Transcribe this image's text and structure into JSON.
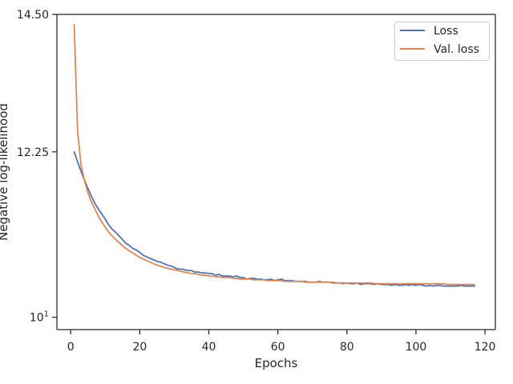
{
  "chart_data": {
    "type": "line",
    "title": "",
    "xlabel": "Epochs",
    "ylabel": "Negative log-likelihood",
    "yscale": "log",
    "xlim": [
      -4,
      123
    ],
    "ylim": [
      9.85,
      14.5
    ],
    "xticks": [
      {
        "value": 0,
        "label": "0"
      },
      {
        "value": 20,
        "label": "20"
      },
      {
        "value": 40,
        "label": "40"
      },
      {
        "value": 60,
        "label": "60"
      },
      {
        "value": 80,
        "label": "80"
      },
      {
        "value": 100,
        "label": "100"
      },
      {
        "value": 120,
        "label": "120"
      }
    ],
    "yticks": [
      {
        "value": 10,
        "label": "10",
        "superscript": "1"
      },
      {
        "value": 12.25,
        "label": "12.25"
      },
      {
        "value": 14.5,
        "label": "14.50"
      }
    ],
    "grid": false,
    "legend": {
      "position": "top-right"
    },
    "series": [
      {
        "name": "Loss",
        "color": "#4c72b0",
        "x": [
          1,
          2,
          3,
          4,
          5,
          6,
          7,
          8,
          9,
          10,
          11,
          12,
          13,
          14,
          15,
          16,
          17,
          18,
          19,
          20,
          21,
          22,
          23,
          24,
          25,
          26,
          27,
          28,
          29,
          30,
          31,
          32,
          33,
          34,
          35,
          36,
          37,
          38,
          39,
          40,
          41,
          42,
          43,
          44,
          45,
          46,
          47,
          48,
          49,
          50,
          51,
          52,
          53,
          54,
          55,
          56,
          57,
          58,
          59,
          60,
          61,
          62,
          63,
          64,
          65,
          66,
          67,
          68,
          69,
          70,
          71,
          72,
          73,
          74,
          75,
          76,
          77,
          78,
          79,
          80,
          81,
          82,
          83,
          84,
          85,
          86,
          87,
          88,
          89,
          90,
          91,
          92,
          93,
          94,
          95,
          96,
          97,
          98,
          99,
          100,
          101,
          102,
          103,
          104,
          105,
          106,
          107,
          108,
          109,
          110,
          111,
          112,
          113,
          114,
          115,
          116,
          117
        ],
        "y": [
          12.25,
          12.1,
          11.96,
          11.83,
          11.71,
          11.6,
          11.5,
          11.42,
          11.35,
          11.28,
          11.2,
          11.14,
          11.1,
          11.05,
          11.0,
          10.95,
          10.92,
          10.88,
          10.86,
          10.83,
          10.79,
          10.77,
          10.75,
          10.73,
          10.71,
          10.7,
          10.68,
          10.66,
          10.65,
          10.63,
          10.61,
          10.61,
          10.6,
          10.59,
          10.59,
          10.57,
          10.57,
          10.56,
          10.56,
          10.55,
          10.55,
          10.53,
          10.54,
          10.52,
          10.52,
          10.52,
          10.51,
          10.52,
          10.5,
          10.5,
          10.48,
          10.49,
          10.49,
          10.48,
          10.48,
          10.47,
          10.47,
          10.48,
          10.46,
          10.47,
          10.48,
          10.46,
          10.46,
          10.46,
          10.45,
          10.45,
          10.45,
          10.45,
          10.44,
          10.44,
          10.44,
          10.45,
          10.44,
          10.44,
          10.44,
          10.43,
          10.43,
          10.43,
          10.42,
          10.43,
          10.42,
          10.42,
          10.43,
          10.41,
          10.42,
          10.42,
          10.42,
          10.41,
          10.42,
          10.41,
          10.41,
          10.41,
          10.4,
          10.41,
          10.4,
          10.4,
          10.41,
          10.4,
          10.41,
          10.4,
          10.41,
          10.4,
          10.39,
          10.4,
          10.39,
          10.4,
          10.4,
          10.39,
          10.39,
          10.39,
          10.39,
          10.39,
          10.4,
          10.39,
          10.39,
          10.39,
          10.39
        ]
      },
      {
        "name": "Val. loss",
        "color": "#dd8452",
        "x": [
          1,
          2,
          3,
          4,
          5,
          6,
          7,
          8,
          9,
          10,
          11,
          12,
          13,
          14,
          15,
          16,
          17,
          18,
          19,
          20,
          21,
          22,
          23,
          24,
          25,
          26,
          27,
          28,
          29,
          30,
          31,
          32,
          33,
          34,
          35,
          36,
          37,
          38,
          39,
          40,
          41,
          42,
          43,
          44,
          45,
          46,
          47,
          48,
          49,
          50,
          51,
          52,
          53,
          54,
          55,
          56,
          57,
          58,
          59,
          60,
          61,
          62,
          63,
          64,
          65,
          66,
          67,
          68,
          69,
          70,
          71,
          72,
          73,
          74,
          75,
          76,
          77,
          78,
          79,
          80,
          81,
          82,
          83,
          84,
          85,
          86,
          87,
          88,
          89,
          90,
          91,
          92,
          93,
          94,
          95,
          96,
          97,
          98,
          99,
          100,
          101,
          102,
          103,
          104,
          105,
          106,
          107,
          108,
          109,
          110,
          111,
          112,
          113,
          114,
          115,
          116,
          117
        ],
        "y": [
          14.32,
          12.55,
          12.05,
          11.82,
          11.65,
          11.52,
          11.42,
          11.32,
          11.24,
          11.17,
          11.1,
          11.05,
          11.0,
          10.96,
          10.92,
          10.88,
          10.85,
          10.82,
          10.79,
          10.76,
          10.74,
          10.72,
          10.7,
          10.68,
          10.66,
          10.65,
          10.63,
          10.62,
          10.61,
          10.6,
          10.59,
          10.58,
          10.57,
          10.56,
          10.55,
          10.55,
          10.54,
          10.53,
          10.53,
          10.52,
          10.52,
          10.51,
          10.51,
          10.5,
          10.5,
          10.5,
          10.49,
          10.49,
          10.48,
          10.48,
          10.48,
          10.48,
          10.47,
          10.47,
          10.47,
          10.47,
          10.46,
          10.46,
          10.46,
          10.46,
          10.46,
          10.45,
          10.45,
          10.45,
          10.45,
          10.45,
          10.45,
          10.44,
          10.44,
          10.44,
          10.44,
          10.44,
          10.44,
          10.44,
          10.44,
          10.44,
          10.43,
          10.43,
          10.43,
          10.43,
          10.43,
          10.43,
          10.43,
          10.43,
          10.43,
          10.43,
          10.43,
          10.42,
          10.42,
          10.42,
          10.42,
          10.42,
          10.42,
          10.42,
          10.42,
          10.42,
          10.42,
          10.42,
          10.42,
          10.42,
          10.42,
          10.42,
          10.42,
          10.42,
          10.42,
          10.42,
          10.42,
          10.42,
          10.41,
          10.41,
          10.41,
          10.41,
          10.41,
          10.41,
          10.41,
          10.41,
          10.41
        ]
      }
    ]
  }
}
